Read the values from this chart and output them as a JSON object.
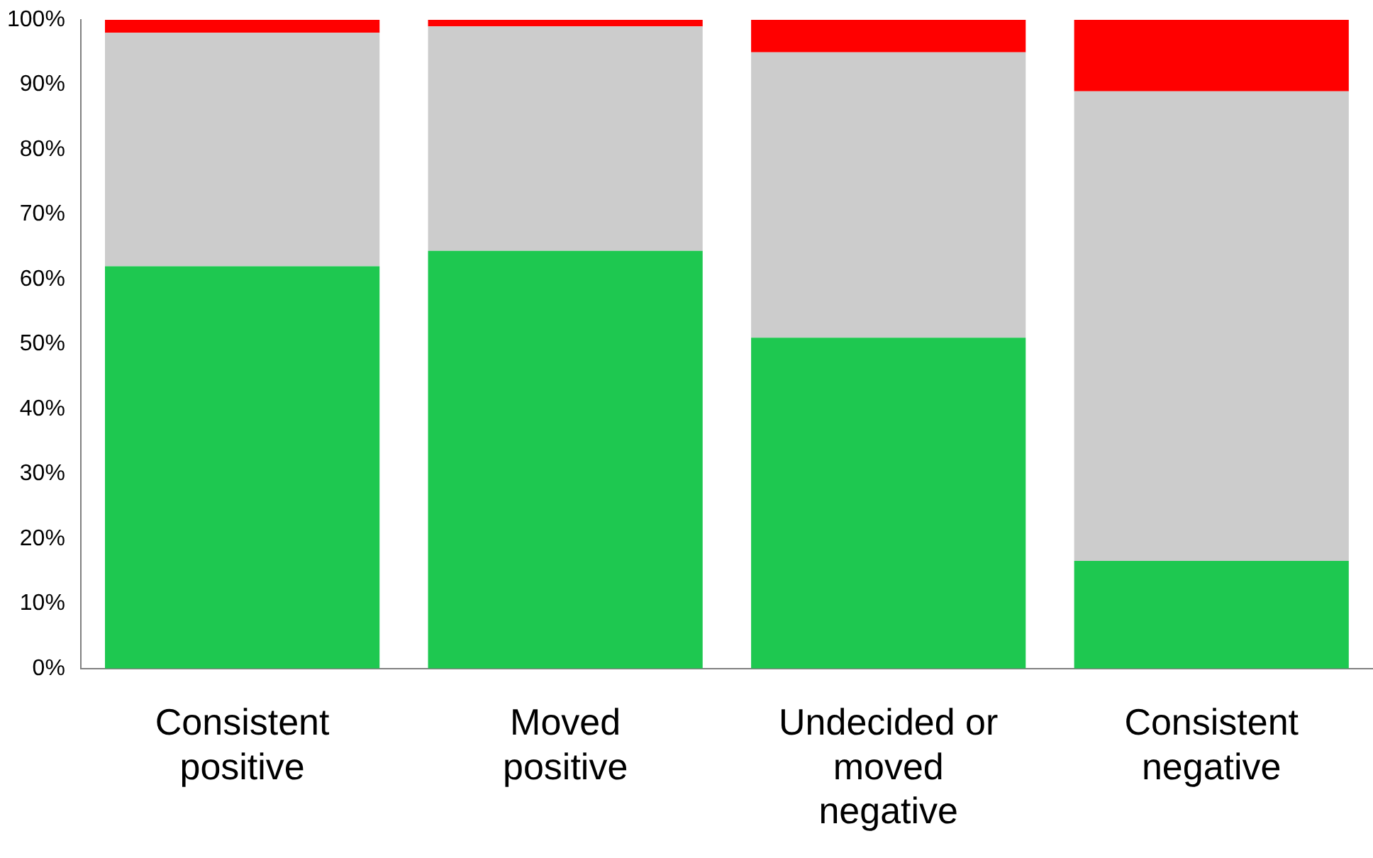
{
  "chart_data": {
    "type": "bar",
    "stacked": true,
    "grid": false,
    "legend": false,
    "categories": [
      "Consistent positive",
      "Moved positive",
      "Undecided or moved negative",
      "Consistent negative"
    ],
    "series": [
      {
        "color": "#1ec850",
        "values": [
          62,
          64.4,
          51,
          16.6
        ]
      },
      {
        "color": "#cccccc",
        "values": [
          36,
          34.6,
          44,
          72.4
        ]
      },
      {
        "color": "#ff0000",
        "values": [
          2,
          1,
          5,
          11
        ]
      }
    ],
    "ylim": [
      0,
      100
    ],
    "yticks": [
      {
        "value": 0,
        "label": "0%"
      },
      {
        "value": 10,
        "label": "10%"
      },
      {
        "value": 20,
        "label": "20%"
      },
      {
        "value": 30,
        "label": "30%"
      },
      {
        "value": 40,
        "label": "40%"
      },
      {
        "value": 50,
        "label": "50%"
      },
      {
        "value": 60,
        "label": "60%"
      },
      {
        "value": 70,
        "label": "70%"
      },
      {
        "value": 80,
        "label": "80%"
      },
      {
        "value": 90,
        "label": "90%"
      },
      {
        "value": 100,
        "label": "100%"
      }
    ]
  }
}
